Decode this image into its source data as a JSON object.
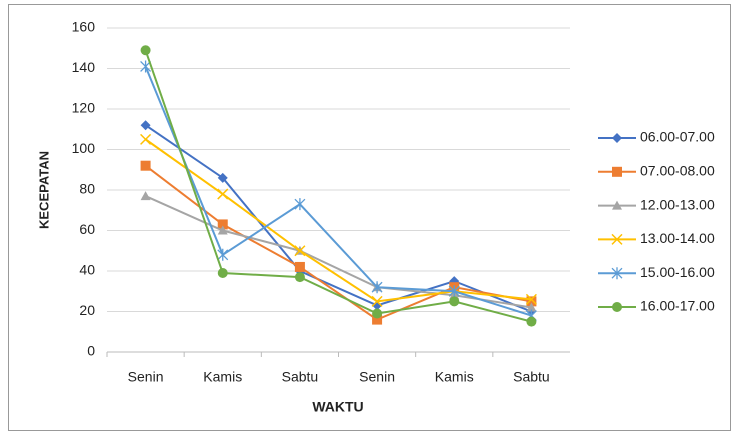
{
  "chart_data": {
    "type": "line",
    "x_label": "WAKTU",
    "y_label": "KECEPATAN",
    "categories": [
      "Senin",
      "Kamis",
      "Sabtu",
      "Senin",
      "Kamis",
      "Sabtu"
    ],
    "ylim": [
      0,
      160
    ],
    "yticks": [
      0,
      20,
      40,
      60,
      80,
      100,
      120,
      140,
      160
    ],
    "grid": true,
    "legend": "right",
    "series": [
      {
        "name": "06.00-07.00",
        "color": "#4472c4",
        "marker": "diamond",
        "values": [
          112,
          86,
          40,
          23,
          35,
          20
        ]
      },
      {
        "name": "07.00-08.00",
        "color": "#ed7d31",
        "marker": "square",
        "values": [
          92,
          63,
          42,
          16,
          32,
          25
        ]
      },
      {
        "name": "12.00-13.00",
        "color": "#a5a5a5",
        "marker": "triangle",
        "values": [
          77,
          60,
          50,
          32,
          28,
          22
        ]
      },
      {
        "name": "13.00-14.00",
        "color": "#ffc000",
        "marker": "x",
        "values": [
          105,
          78,
          50,
          25,
          30,
          26
        ]
      },
      {
        "name": "15.00-16.00",
        "color": "#5b9bd5",
        "marker": "star",
        "values": [
          141,
          48,
          73,
          32,
          30,
          18
        ]
      },
      {
        "name": "16.00-17.00",
        "color": "#70ad47",
        "marker": "circle",
        "values": [
          149,
          39,
          37,
          19,
          25,
          15
        ]
      }
    ]
  }
}
